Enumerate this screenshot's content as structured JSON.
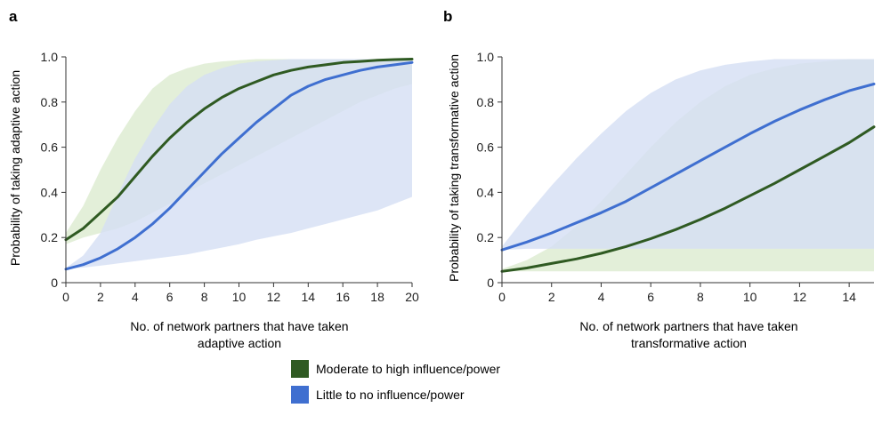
{
  "colors": {
    "moderate_line": "#2f5a22",
    "moderate_band": "#dcebd0",
    "little_line": "#3f6fd0",
    "little_band": "#d4def4",
    "overlap_band": "#ccdcd4",
    "axis": "#333333"
  },
  "chart_data": [
    {
      "type": "line",
      "panel": "a",
      "xlabel_lines": [
        "No. of network partners that have taken",
        "adaptive action"
      ],
      "ylabel": "Probability of taking adaptive action",
      "xlim": [
        0,
        20
      ],
      "ylim": [
        0,
        1
      ],
      "xticks": [
        0,
        2,
        4,
        6,
        8,
        10,
        12,
        14,
        16,
        18,
        20
      ],
      "yticks": [
        0,
        0.2,
        0.4,
        0.6,
        0.8,
        1.0
      ],
      "ytick_labels": [
        "0",
        "0.2",
        "0.4",
        "0.6",
        "0.8",
        "1.0"
      ],
      "series": [
        {
          "name": "Moderate to high influence/power",
          "color_key": "moderate",
          "x": [
            0,
            1,
            2,
            3,
            4,
            5,
            6,
            7,
            8,
            9,
            10,
            11,
            12,
            13,
            14,
            15,
            16,
            17,
            18,
            19,
            20
          ],
          "values": [
            0.19,
            0.24,
            0.31,
            0.38,
            0.47,
            0.56,
            0.64,
            0.71,
            0.77,
            0.82,
            0.86,
            0.89,
            0.92,
            0.94,
            0.955,
            0.965,
            0.975,
            0.98,
            0.985,
            0.988,
            0.99
          ],
          "lower": [
            0.17,
            0.2,
            0.22,
            0.24,
            0.27,
            0.31,
            0.35,
            0.4,
            0.44,
            0.48,
            0.52,
            0.56,
            0.6,
            0.64,
            0.68,
            0.72,
            0.76,
            0.8,
            0.83,
            0.86,
            0.88
          ],
          "upper": [
            0.22,
            0.34,
            0.5,
            0.64,
            0.76,
            0.86,
            0.92,
            0.95,
            0.97,
            0.98,
            0.985,
            0.99,
            0.99,
            0.99,
            0.99,
            0.99,
            0.99,
            0.99,
            0.99,
            0.99,
            0.99
          ]
        },
        {
          "name": "Little to no influence/power",
          "color_key": "little",
          "x": [
            0,
            1,
            2,
            3,
            4,
            5,
            6,
            7,
            8,
            9,
            10,
            11,
            12,
            13,
            14,
            15,
            16,
            17,
            18,
            19,
            20
          ],
          "values": [
            0.06,
            0.08,
            0.11,
            0.15,
            0.2,
            0.26,
            0.33,
            0.41,
            0.49,
            0.57,
            0.64,
            0.71,
            0.77,
            0.83,
            0.87,
            0.9,
            0.92,
            0.94,
            0.955,
            0.965,
            0.975
          ],
          "lower": [
            0.06,
            0.067,
            0.075,
            0.085,
            0.095,
            0.105,
            0.115,
            0.125,
            0.14,
            0.155,
            0.17,
            0.19,
            0.205,
            0.22,
            0.24,
            0.26,
            0.28,
            0.3,
            0.32,
            0.35,
            0.38
          ],
          "upper": [
            0.065,
            0.12,
            0.22,
            0.39,
            0.55,
            0.68,
            0.79,
            0.87,
            0.92,
            0.95,
            0.97,
            0.98,
            0.985,
            0.99,
            0.99,
            0.99,
            0.99,
            0.99,
            0.99,
            0.99,
            0.99
          ]
        }
      ]
    },
    {
      "type": "line",
      "panel": "b",
      "xlabel_lines": [
        "No. of network partners that have taken",
        "transformative action"
      ],
      "ylabel": "Probability of taking transformative action",
      "xlim": [
        0,
        15
      ],
      "ylim": [
        0,
        1
      ],
      "xticks": [
        0,
        2,
        4,
        6,
        8,
        10,
        12,
        14
      ],
      "yticks": [
        0,
        0.2,
        0.4,
        0.6,
        0.8,
        1.0
      ],
      "ytick_labels": [
        "0",
        "0.2",
        "0.4",
        "0.6",
        "0.8",
        "1.0"
      ],
      "series": [
        {
          "name": "Moderate to high influence/power",
          "color_key": "moderate",
          "x": [
            0,
            1,
            2,
            3,
            4,
            5,
            6,
            7,
            8,
            9,
            10,
            11,
            12,
            13,
            14,
            15
          ],
          "values": [
            0.05,
            0.065,
            0.085,
            0.105,
            0.13,
            0.16,
            0.195,
            0.235,
            0.28,
            0.33,
            0.385,
            0.44,
            0.5,
            0.56,
            0.62,
            0.69
          ],
          "lower": [
            0.05,
            0.05,
            0.05,
            0.05,
            0.05,
            0.05,
            0.05,
            0.05,
            0.05,
            0.05,
            0.05,
            0.05,
            0.05,
            0.05,
            0.05,
            0.05
          ],
          "upper": [
            0.06,
            0.1,
            0.16,
            0.25,
            0.36,
            0.48,
            0.6,
            0.71,
            0.8,
            0.87,
            0.92,
            0.95,
            0.97,
            0.98,
            0.99,
            0.99
          ]
        },
        {
          "name": "Little to no influence/power",
          "color_key": "little",
          "x": [
            0,
            1,
            2,
            3,
            4,
            5,
            6,
            7,
            8,
            9,
            10,
            11,
            12,
            13,
            14,
            15
          ],
          "values": [
            0.145,
            0.18,
            0.22,
            0.265,
            0.31,
            0.36,
            0.42,
            0.48,
            0.54,
            0.6,
            0.66,
            0.715,
            0.765,
            0.81,
            0.85,
            0.88
          ],
          "lower": [
            0.145,
            0.15,
            0.15,
            0.15,
            0.15,
            0.15,
            0.15,
            0.15,
            0.15,
            0.15,
            0.15,
            0.15,
            0.15,
            0.15,
            0.15,
            0.15
          ],
          "upper": [
            0.16,
            0.3,
            0.43,
            0.55,
            0.66,
            0.76,
            0.84,
            0.9,
            0.94,
            0.965,
            0.98,
            0.99,
            0.99,
            0.99,
            0.99,
            0.99
          ]
        }
      ]
    }
  ],
  "panels": {
    "a": {
      "label": "a"
    },
    "b": {
      "label": "b"
    }
  },
  "legend": {
    "items": [
      {
        "label": "Moderate to high influence/power",
        "color_key": "moderate"
      },
      {
        "label": "Little to no influence/power",
        "color_key": "little"
      }
    ]
  }
}
